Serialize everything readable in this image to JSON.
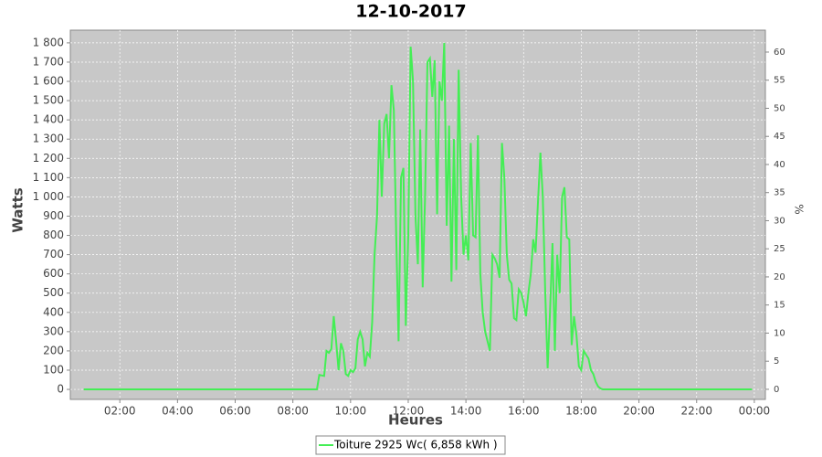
{
  "chart_data": {
    "type": "line",
    "title": "12-10-2017",
    "x_label": "Heures",
    "y_label": "Watts",
    "y2_label": "%",
    "grid": true,
    "legend": "bottom",
    "background": "#c8c8c8",
    "xlim": [
      17,
      1463
    ],
    "xticks": [
      {
        "value": 120,
        "label": "02:00"
      },
      {
        "value": 240,
        "label": "04:00"
      },
      {
        "value": 360,
        "label": "06:00"
      },
      {
        "value": 480,
        "label": "08:00"
      },
      {
        "value": 600,
        "label": "10:00"
      },
      {
        "value": 720,
        "label": "12:00"
      },
      {
        "value": 840,
        "label": "14:00"
      },
      {
        "value": 960,
        "label": "16:00"
      },
      {
        "value": 1080,
        "label": "18:00"
      },
      {
        "value": 1200,
        "label": "20:00"
      },
      {
        "value": 1320,
        "label": "22:00"
      },
      {
        "value": 1440,
        "label": "00:00"
      }
    ],
    "ylim": [
      -52,
      1866
    ],
    "yticks": [
      0,
      100,
      200,
      300,
      400,
      500,
      600,
      700,
      800,
      900,
      {
        "value": 1000,
        "label": "1 000"
      },
      {
        "value": 1100,
        "label": "1 100"
      },
      {
        "value": 1200,
        "label": "1 200"
      },
      {
        "value": 1300,
        "label": "1 300"
      },
      {
        "value": 1400,
        "label": "1 400"
      },
      {
        "value": 1500,
        "label": "1 500"
      },
      {
        "value": 1600,
        "label": "1 600"
      },
      {
        "value": 1700,
        "label": "1 700"
      },
      {
        "value": 1800,
        "label": "1 800"
      }
    ],
    "y2lim": [
      -1.8,
      63.9
    ],
    "y2ticks": [
      0,
      5,
      10,
      15,
      20,
      25,
      30,
      35,
      40,
      45,
      50,
      55,
      60
    ],
    "x": [
      45,
      530,
      535,
      545,
      550,
      555,
      560,
      565,
      570,
      575,
      580,
      585,
      590,
      595,
      600,
      605,
      610,
      615,
      620,
      625,
      630,
      635,
      640,
      645,
      650,
      655,
      660,
      665,
      670,
      675,
      680,
      685,
      690,
      695,
      700,
      705,
      710,
      715,
      720,
      725,
      730,
      735,
      740,
      745,
      750,
      755,
      760,
      765,
      770,
      775,
      780,
      785,
      790,
      795,
      800,
      805,
      810,
      815,
      820,
      825,
      830,
      835,
      840,
      845,
      850,
      855,
      860,
      865,
      870,
      875,
      880,
      885,
      890,
      895,
      900,
      905,
      910,
      915,
      920,
      925,
      930,
      935,
      940,
      945,
      950,
      955,
      960,
      965,
      970,
      975,
      980,
      985,
      990,
      995,
      1000,
      1005,
      1010,
      1015,
      1020,
      1025,
      1030,
      1035,
      1040,
      1045,
      1050,
      1055,
      1060,
      1065,
      1070,
      1075,
      1080,
      1085,
      1090,
      1095,
      1100,
      1105,
      1110,
      1115,
      1120,
      1125,
      1435
    ],
    "series": [
      {
        "name": "Toiture 2925 Wc( 6,858 kWh )",
        "color": "#44ee55",
        "values": [
          0,
          0,
          75,
          70,
          200,
          190,
          210,
          380,
          250,
          100,
          240,
          200,
          80,
          70,
          100,
          90,
          110,
          260,
          300,
          260,
          120,
          190,
          170,
          350,
          700,
          900,
          1400,
          1000,
          1380,
          1430,
          1200,
          1580,
          1450,
          800,
          250,
          1100,
          1150,
          330,
          800,
          1780,
          1600,
          900,
          650,
          1350,
          530,
          1000,
          1700,
          1720,
          1520,
          1710,
          910,
          1600,
          1500,
          1800,
          850,
          1370,
          560,
          1300,
          620,
          1660,
          1000,
          700,
          800,
          670,
          1280,
          800,
          790,
          1320,
          600,
          400,
          300,
          250,
          200,
          700,
          680,
          650,
          580,
          1280,
          1100,
          700,
          570,
          550,
          370,
          360,
          520,
          500,
          450,
          380,
          500,
          600,
          780,
          710,
          980,
          1230,
          1000,
          500,
          110,
          400,
          760,
          200,
          700,
          500,
          1000,
          1050,
          790,
          780,
          230,
          380,
          280,
          120,
          100,
          200,
          180,
          160,
          100,
          80,
          40,
          15,
          5,
          0,
          0
        ]
      }
    ]
  }
}
